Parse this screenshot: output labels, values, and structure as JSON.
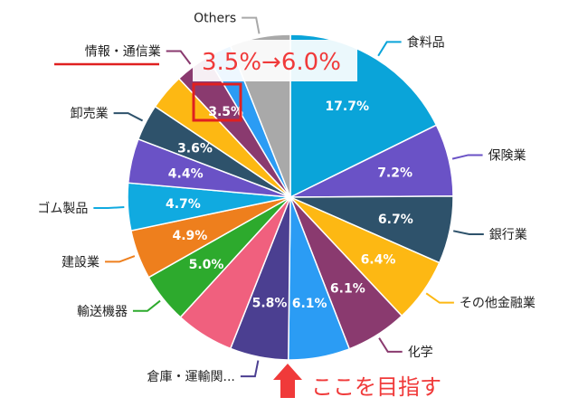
{
  "chart_data": {
    "type": "pie",
    "slices": [
      {
        "label": "食料品",
        "value": 17.7,
        "value_label": "17.7%",
        "color": "#0aa4d9"
      },
      {
        "label": "保険業",
        "value": 7.2,
        "value_label": "7.2%",
        "color": "#6a52c6"
      },
      {
        "label": "銀行業",
        "value": 6.7,
        "value_label": "6.7%",
        "color": "#2e526b"
      },
      {
        "label": "その他金融業",
        "value": 6.4,
        "value_label": "6.4%",
        "color": "#fdb813"
      },
      {
        "label": "化学",
        "value": 6.1,
        "value_label": "6.1%",
        "color": "#8a3a6f"
      },
      {
        "label": "",
        "value": 6.1,
        "value_label": "6.1%",
        "color": "#2b9cf4"
      },
      {
        "label": "倉庫・運輸関...",
        "value": 5.8,
        "value_label": "5.8%",
        "color": "#4b3f91"
      },
      {
        "label": "",
        "value": 5.8,
        "value_label": "",
        "color": "#f0607e"
      },
      {
        "label": "輸送機器",
        "value": 5.0,
        "value_label": "5.0%",
        "color": "#2daa2d"
      },
      {
        "label": "建設業",
        "value": 4.9,
        "value_label": "4.9%",
        "color": "#ee7f1d"
      },
      {
        "label": "ゴム製品",
        "value": 4.7,
        "value_label": "4.7%",
        "color": "#10aae0"
      },
      {
        "label": "",
        "value": 4.4,
        "value_label": "4.4%",
        "color": "#6a52c6"
      },
      {
        "label": "卸売業",
        "value": 3.6,
        "value_label": "3.6%",
        "color": "#2e526b"
      },
      {
        "label": "",
        "value": 3.6,
        "value_label": "",
        "color": "#fdb813"
      },
      {
        "label": "情報・通信業",
        "value": 3.5,
        "value_label": "3.5%",
        "color": "#8a3a6f"
      },
      {
        "label": "",
        "value": 2.5,
        "value_label": "",
        "color": "#2b9cf4"
      },
      {
        "label": "Others",
        "value": 6.0,
        "value_label": "",
        "color": "#a9a9a9"
      }
    ]
  },
  "annotations": {
    "change_text": "3.5%→6.0%",
    "goal_text": "ここを目指す",
    "accent_color": "#f03a3a",
    "highlight_color": "#e02020"
  }
}
